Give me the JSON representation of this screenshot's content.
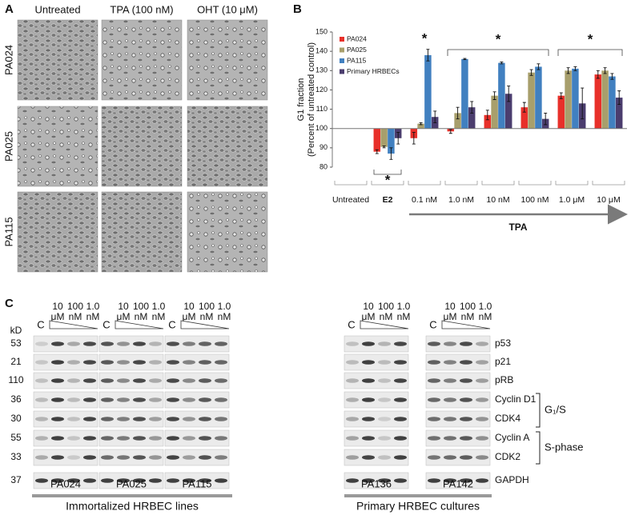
{
  "panel_a": {
    "label": "A",
    "columns": [
      "Untreated",
      "TPA (100 nM)",
      "OHT (10 μM)"
    ],
    "rows": [
      "PA024",
      "PA025",
      "PA115"
    ]
  },
  "chart_data": {
    "type": "bar",
    "panel_label": "B",
    "y_label": [
      "G1 fraction",
      "(Percent of untreated control)"
    ],
    "categories": [
      "Untreated",
      "E2",
      "0.1 nM",
      "1.0 nM",
      "10 nM",
      "100 nM",
      "1.0 μM",
      "10 μM"
    ],
    "category_group": "TPA",
    "series": [
      {
        "name": "PA024",
        "color": "#e8302a",
        "values": [
          null,
          88,
          95,
          98.5,
          107,
          111,
          117,
          128
        ],
        "errors": [
          null,
          1,
          3,
          1,
          2.5,
          2.5,
          1.5,
          2
        ]
      },
      {
        "name": "PA025",
        "color": "#a89f6c",
        "values": [
          null,
          90.5,
          102.5,
          108,
          117,
          129,
          130,
          130
        ],
        "errors": [
          null,
          0.5,
          0.5,
          3,
          2,
          1.5,
          1.5,
          1.5
        ]
      },
      {
        "name": "PA115",
        "color": "#4180c0",
        "values": [
          null,
          87,
          138,
          136,
          134,
          132,
          131,
          127
        ],
        "errors": [
          null,
          3,
          3,
          0.3,
          0.5,
          1.5,
          1,
          1.5
        ]
      },
      {
        "name": "Primary HRBECs",
        "color": "#4b3d6e",
        "values": [
          null,
          95,
          106,
          111,
          118,
          105,
          113,
          116
        ],
        "errors": [
          null,
          3,
          3,
          3,
          4,
          3,
          8,
          3.5
        ]
      }
    ],
    "ylim": [
      80,
      150
    ],
    "yticks": [
      80,
      90,
      100,
      110,
      120,
      130,
      140,
      150
    ],
    "baseline": 100,
    "annotations": [
      "*",
      "*",
      "*",
      "*"
    ],
    "legend": "top-left"
  },
  "panel_c": {
    "label": "C",
    "kd_title": "kD",
    "control_lane": "C",
    "dose_lanes": [
      [
        "10",
        "μM"
      ],
      [
        "100",
        "nM"
      ],
      [
        "1.0",
        "nM"
      ]
    ],
    "rows": [
      {
        "kd": "53",
        "protein": "p53"
      },
      {
        "kd": "21",
        "protein": "p21"
      },
      {
        "kd": "110",
        "protein": "pRB"
      },
      {
        "kd": "36",
        "protein": "Cyclin D1"
      },
      {
        "kd": "30",
        "protein": "CDK4"
      },
      {
        "kd": "55",
        "protein": "Cyclin A"
      },
      {
        "kd": "33",
        "protein": "CDK2"
      },
      {
        "kd": "37",
        "protein": "GAPDH"
      }
    ],
    "phase_brackets": [
      "G₁/S",
      "S-phase"
    ],
    "blots": [
      "PA024",
      "PA025",
      "PA115",
      "PA136",
      "PA142"
    ],
    "groups": [
      "Immortalized HRBEC lines",
      "Primary HRBEC cultures"
    ]
  }
}
